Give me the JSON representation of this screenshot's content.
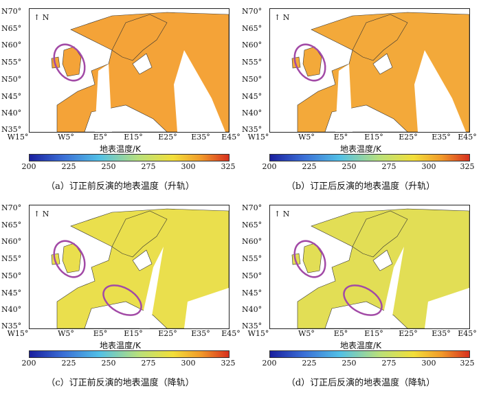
{
  "colorbar": {
    "title": "地表温度/K",
    "ticks": [
      "200",
      "225",
      "250",
      "275",
      "300",
      "325"
    ],
    "range": [
      200,
      325
    ],
    "colors": [
      "#1a1f9e",
      "#3b6fd6",
      "#52c0e6",
      "#b9e07a",
      "#f2df3a",
      "#f19a2a",
      "#d7301f"
    ]
  },
  "axes": {
    "y_ticks": [
      "N70°",
      "N65°",
      "N60°",
      "N55°",
      "N50°",
      "N45°",
      "N40°",
      "N35°"
    ],
    "x_ticks": [
      "W15°",
      "W5°",
      "E5°",
      "E15°",
      "E25°",
      "E35°",
      "E45°"
    ]
  },
  "north_label": "N",
  "highlight_color": "#a24aa6",
  "panels": [
    {
      "id": "a",
      "caption": "（a）订正前反演的地表温度（升轨）",
      "pass": "ascending",
      "fill_color": "#f4a338",
      "ellipses": 1
    },
    {
      "id": "b",
      "caption": "（b）订正后反演的地表温度（升轨）",
      "pass": "ascending",
      "fill_color": "#f3a93a",
      "ellipses": 1
    },
    {
      "id": "c",
      "caption": "（c）订正前反演的地表温度（降轨）",
      "pass": "descending",
      "fill_color": "#eadf4d",
      "ellipses": 2
    },
    {
      "id": "d",
      "caption": "（d）订正后反演的地表温度（降轨）",
      "pass": "descending",
      "fill_color": "#e2de55",
      "ellipses": 2
    }
  ]
}
